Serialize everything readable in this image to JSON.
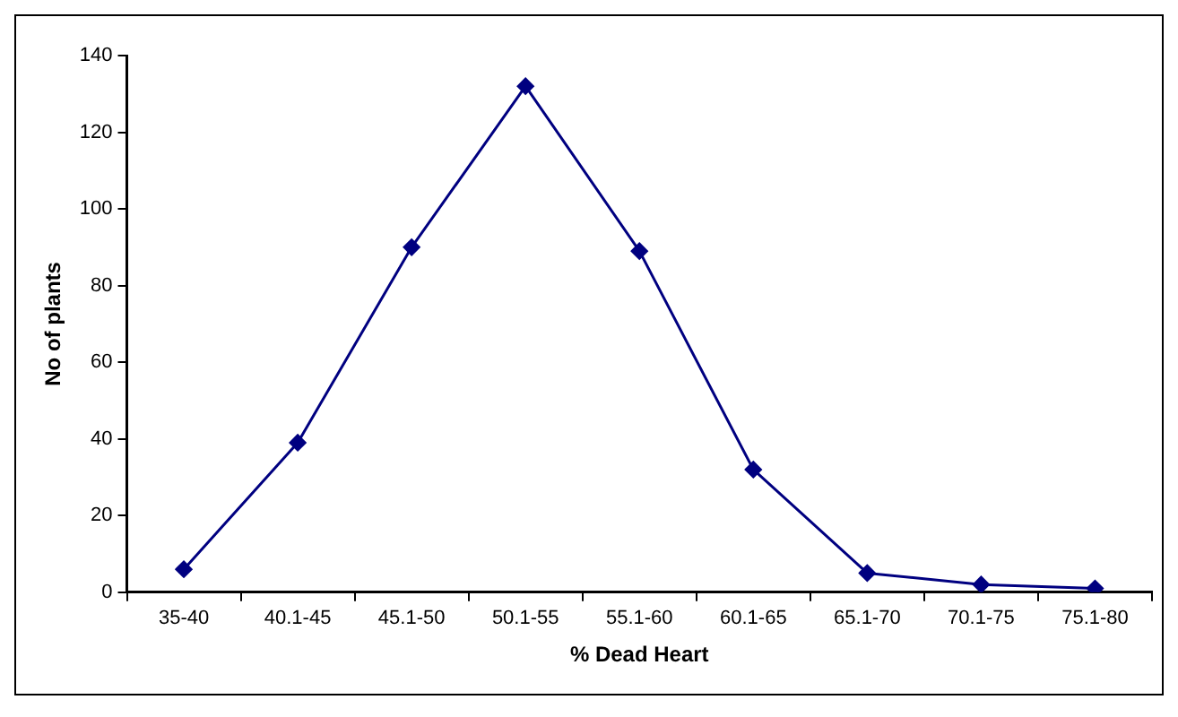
{
  "chart_data": {
    "type": "line",
    "xlabel": "% Dead Heart",
    "ylabel": "No of plants",
    "categories": [
      "35-40",
      "40.1-45",
      "45.1-50",
      "50.1-55",
      "55.1-60",
      "60.1-65",
      "65.1-70",
      "70.1-75",
      "75.1-80"
    ],
    "series": [
      {
        "color": "#000080",
        "values": [
          6,
          39,
          90,
          132,
          89,
          32,
          5,
          2,
          1
        ]
      }
    ],
    "ylim": [
      0,
      140
    ],
    "yticks": [
      0,
      20,
      40,
      60,
      80,
      100,
      120,
      140
    ],
    "grid": false,
    "legend": false,
    "marker": "diamond",
    "line_style": "solid"
  }
}
